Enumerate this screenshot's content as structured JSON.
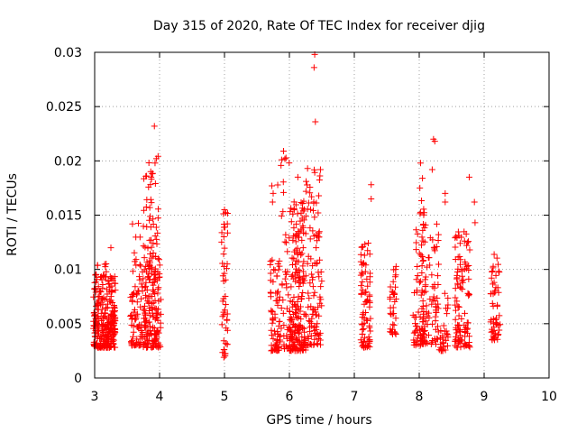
{
  "chart_data": {
    "type": "scatter",
    "title": "Day 315 of 2020, Rate Of TEC Index for receiver djig",
    "xlabel": "GPS time / hours",
    "ylabel": "ROTI / TECUs",
    "xlim": [
      3,
      10
    ],
    "ylim": [
      0,
      0.03
    ],
    "xticks": [
      3,
      4,
      5,
      6,
      7,
      8,
      9,
      10
    ],
    "yticks": [
      0,
      0.005,
      0.01,
      0.015,
      0.02,
      0.025,
      0.03
    ],
    "xtick_labels": [
      "3",
      "4",
      "5",
      "6",
      "7",
      "8",
      "9",
      "10"
    ],
    "ytick_labels": [
      "0",
      "0.005",
      "0.01",
      "0.015",
      "0.02",
      "0.025",
      "0.03"
    ],
    "grid": true,
    "marker": "+",
    "color": "#ff0000",
    "clusters": [
      {
        "x": [
          2.98,
          3.32
        ],
        "ylo": 0.0028,
        "yhi": 0.0095,
        "n": 260
      },
      {
        "x": [
          3.55,
          3.75
        ],
        "ylo": 0.003,
        "yhi": 0.0095,
        "n": 70
      },
      {
        "x": [
          3.75,
          4.02
        ],
        "ylo": 0.0028,
        "yhi": 0.011,
        "n": 160
      },
      {
        "x": [
          3.0,
          3.22
        ],
        "ylo": 0.009,
        "yhi": 0.0107,
        "n": 10
      },
      {
        "x": [
          3.58,
          3.75
        ],
        "ylo": 0.0095,
        "yhi": 0.0145,
        "n": 12
      },
      {
        "x": [
          3.75,
          4.0
        ],
        "ylo": 0.011,
        "yhi": 0.0205,
        "n": 45
      },
      {
        "x": [
          4.95,
          5.05
        ],
        "ylo": 0.002,
        "yhi": 0.0155,
        "n": 45
      },
      {
        "x": [
          5.7,
          5.85
        ],
        "ylo": 0.0025,
        "yhi": 0.011,
        "n": 60
      },
      {
        "x": [
          5.82,
          6.0
        ],
        "ylo": 0.0025,
        "yhi": 0.0205,
        "n": 50
      },
      {
        "x": [
          6.0,
          6.25
        ],
        "ylo": 0.0025,
        "yhi": 0.0165,
        "n": 200
      },
      {
        "x": [
          6.25,
          6.5
        ],
        "ylo": 0.003,
        "yhi": 0.0195,
        "n": 110
      },
      {
        "x": [
          7.1,
          7.25
        ],
        "ylo": 0.0028,
        "yhi": 0.0125,
        "n": 80
      },
      {
        "x": [
          7.55,
          7.65
        ],
        "ylo": 0.004,
        "yhi": 0.0115,
        "n": 35
      },
      {
        "x": [
          7.9,
          8.1
        ],
        "ylo": 0.003,
        "yhi": 0.0165,
        "n": 90
      },
      {
        "x": [
          8.05,
          8.3
        ],
        "ylo": 0.003,
        "yhi": 0.0145,
        "n": 70
      },
      {
        "x": [
          8.3,
          8.45
        ],
        "ylo": 0.0025,
        "yhi": 0.0095,
        "n": 30
      },
      {
        "x": [
          8.55,
          8.78
        ],
        "ylo": 0.0028,
        "yhi": 0.0135,
        "n": 110
      },
      {
        "x": [
          9.1,
          9.25
        ],
        "ylo": 0.0035,
        "yhi": 0.0115,
        "n": 55
      }
    ],
    "outliers": [
      {
        "x": 3.92,
        "y": 0.0232
      },
      {
        "x": 3.87,
        "y": 0.0185
      },
      {
        "x": 3.8,
        "y": 0.0186
      },
      {
        "x": 3.93,
        "y": 0.0198
      },
      {
        "x": 3.95,
        "y": 0.0202
      },
      {
        "x": 3.25,
        "y": 0.012
      },
      {
        "x": 6.39,
        "y": 0.0298
      },
      {
        "x": 6.38,
        "y": 0.0286
      },
      {
        "x": 6.4,
        "y": 0.0236
      },
      {
        "x": 5.91,
        "y": 0.0209
      },
      {
        "x": 5.88,
        "y": 0.0201
      },
      {
        "x": 6.28,
        "y": 0.0193
      },
      {
        "x": 6.13,
        "y": 0.0185
      },
      {
        "x": 8.22,
        "y": 0.022
      },
      {
        "x": 8.24,
        "y": 0.0218
      },
      {
        "x": 8.2,
        "y": 0.0192
      },
      {
        "x": 8.02,
        "y": 0.0198
      },
      {
        "x": 8.05,
        "y": 0.0184
      },
      {
        "x": 8.01,
        "y": 0.0175
      },
      {
        "x": 8.4,
        "y": 0.017
      },
      {
        "x": 8.4,
        "y": 0.0162
      },
      {
        "x": 8.77,
        "y": 0.0185
      },
      {
        "x": 8.85,
        "y": 0.0162
      },
      {
        "x": 8.86,
        "y": 0.0143
      },
      {
        "x": 7.26,
        "y": 0.0178
      },
      {
        "x": 7.26,
        "y": 0.0165
      },
      {
        "x": 5.73,
        "y": 0.0177
      },
      {
        "x": 5.75,
        "y": 0.017
      },
      {
        "x": 5.74,
        "y": 0.0162
      },
      {
        "x": 5.0,
        "y": 0.0155
      },
      {
        "x": 4.99,
        "y": 0.0019
      }
    ],
    "seed": 315
  }
}
